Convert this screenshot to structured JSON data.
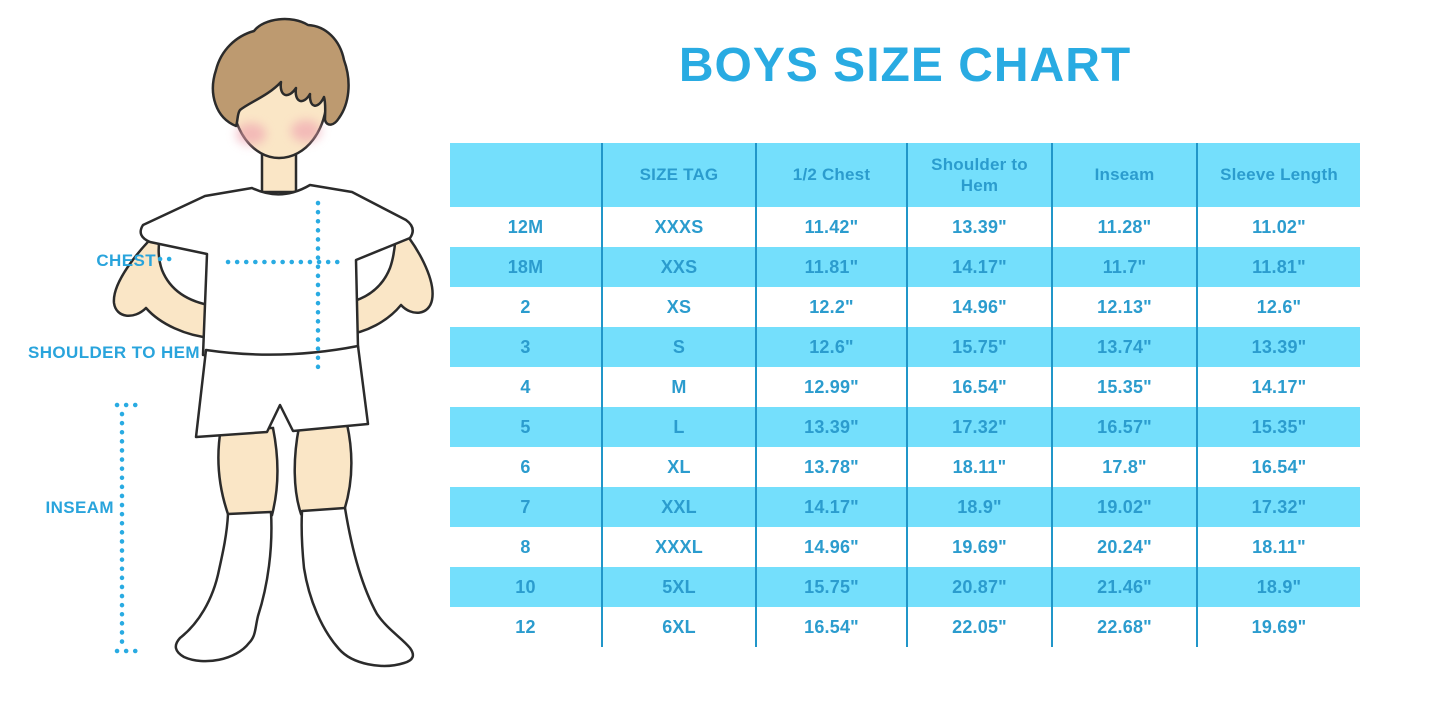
{
  "chart_data": {
    "type": "table",
    "title": "BOYS SIZE CHART",
    "columns": [
      "",
      "SIZE TAG",
      "1/2 Chest",
      "Shoulder to Hem",
      "Inseam",
      "Sleeve Length"
    ],
    "rows": [
      [
        "12M",
        "XXXS",
        "11.42\"",
        "13.39\"",
        "11.28\"",
        "11.02\""
      ],
      [
        "18M",
        "XXS",
        "11.81\"",
        "14.17\"",
        "11.7\"",
        "11.81\""
      ],
      [
        "2",
        "XS",
        "12.2\"",
        "14.96\"",
        "12.13\"",
        "12.6\""
      ],
      [
        "3",
        "S",
        "12.6\"",
        "15.75\"",
        "13.74\"",
        "13.39\""
      ],
      [
        "4",
        "M",
        "12.99\"",
        "16.54\"",
        "15.35\"",
        "14.17\""
      ],
      [
        "5",
        "L",
        "13.39\"",
        "17.32\"",
        "16.57\"",
        "15.35\""
      ],
      [
        "6",
        "XL",
        "13.78\"",
        "18.11\"",
        "17.8\"",
        "16.54\""
      ],
      [
        "7",
        "XXL",
        "14.17\"",
        "18.9\"",
        "19.02\"",
        "17.32\""
      ],
      [
        "8",
        "XXXL",
        "14.96\"",
        "19.69\"",
        "20.24\"",
        "18.11\""
      ],
      [
        "10",
        "5XL",
        "15.75\"",
        "20.87\"",
        "21.46\"",
        "18.9\""
      ],
      [
        "12",
        "6XL",
        "16.54\"",
        "22.05\"",
        "22.68\"",
        "19.69\""
      ]
    ],
    "layout": {
      "row_striping": "alternating white and cyan, header cyan",
      "grid": "vertical dividers only"
    }
  },
  "figure_labels": {
    "chest": "CHEST",
    "shoulder_to_hem": "SHOULDER TO HEM",
    "inseam": "INSEAM"
  },
  "colors": {
    "title_blue": "#29ABE2",
    "table_text_blue": "#2B9CCE",
    "band_cyan": "#74DFFC",
    "divider_blue": "#2196C9",
    "dotted_line_blue": "#29ABE2",
    "skin": "#FAE6C6",
    "hair": "#BD9A70",
    "cheek": "#EFA3B0",
    "outline": "#2b2b2b"
  }
}
